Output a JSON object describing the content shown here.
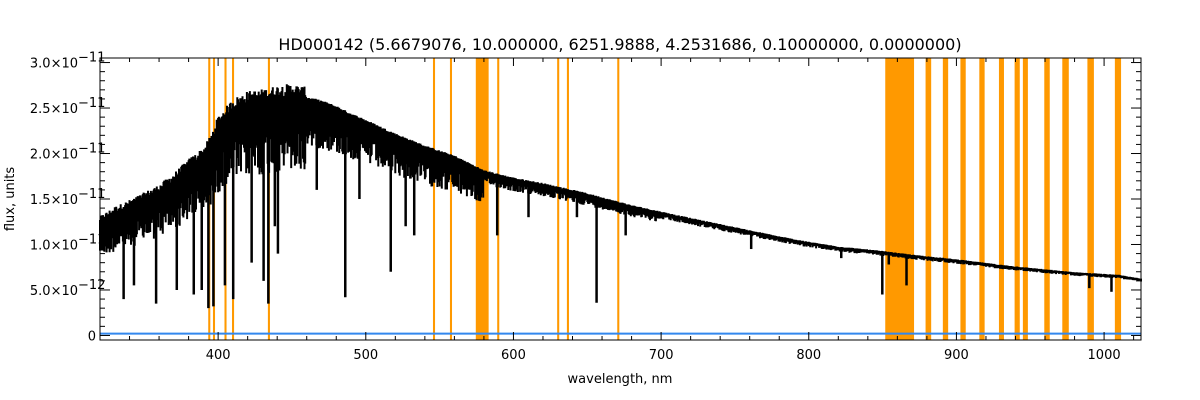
{
  "chart_data": {
    "type": "line",
    "title": "HD000142    (5.6679076, 10.000000, 6251.9888, 4.2531686, 0.10000000, 0.0000000)",
    "xlabel": "wavelength, nm",
    "ylabel": "flux, units",
    "xlim": [
      320,
      1025
    ],
    "ylim": [
      -5e-13,
      3.05e-11
    ],
    "grid": false,
    "x_ticks": [
      400,
      500,
      600,
      700,
      800,
      900,
      1000
    ],
    "x_tick_labels": [
      "400",
      "500",
      "600",
      "700",
      "800",
      "900",
      "1000"
    ],
    "y_ticks": [
      0,
      5e-12,
      1e-11,
      1.5e-11,
      2e-11,
      2.5e-11,
      3e-11
    ],
    "y_tick_labels": [
      {
        "mantissa": "0",
        "exp": ""
      },
      {
        "mantissa": "5.0×10",
        "exp": "−12"
      },
      {
        "mantissa": "1.0×10",
        "exp": "−11"
      },
      {
        "mantissa": "1.5×10",
        "exp": "−11"
      },
      {
        "mantissa": "2.0×10",
        "exp": "−11"
      },
      {
        "mantissa": "2.5×10",
        "exp": "−11"
      },
      {
        "mantissa": "3.0×10",
        "exp": "−11"
      }
    ],
    "colors": {
      "spectrum": "#000000",
      "masked_bands": "#FF9900",
      "error_line": "#3388EE",
      "axes": "#000000"
    },
    "masked_bands": [
      [
        393.3,
        394.7
      ],
      [
        396.5,
        397.9
      ],
      [
        404.3,
        405.7
      ],
      [
        409.4,
        410.8
      ],
      [
        433.7,
        435.1
      ],
      [
        545.5,
        546.9
      ],
      [
        557.0,
        558.4
      ],
      [
        574.5,
        583.2
      ],
      [
        589.0,
        590.4
      ],
      [
        629.6,
        631.0
      ],
      [
        636.2,
        637.6
      ],
      [
        670.3,
        671.7
      ],
      [
        851.8,
        871.3
      ],
      [
        879.1,
        882.9
      ],
      [
        890.8,
        894.4
      ],
      [
        902.7,
        906.3
      ],
      [
        915.5,
        919.1
      ],
      [
        928.8,
        932.2
      ],
      [
        939.4,
        942.9
      ],
      [
        945.0,
        948.4
      ],
      [
        959.5,
        963.2
      ],
      [
        971.7,
        976.1
      ],
      [
        988.7,
        993.1
      ],
      [
        1007.3,
        1011.5
      ]
    ],
    "series": [
      {
        "type": "continuum",
        "x": [
          320,
          330,
          340,
          350,
          360,
          370,
          380,
          390,
          395,
          400,
          410,
          420,
          430,
          440,
          450,
          460,
          470,
          480,
          490,
          500,
          520,
          540,
          560,
          570,
          580,
          600,
          620,
          650,
          680,
          700,
          720,
          750,
          780,
          800,
          820,
          850,
          870,
          900,
          930,
          960,
          980,
          1000,
          1010,
          1025
        ],
        "y": [
          1.25e-11,
          1.35e-11,
          1.42e-11,
          1.5e-11,
          1.58e-11,
          1.7e-11,
          1.85e-11,
          1.97e-11,
          2.1e-11,
          2.3e-11,
          2.48e-11,
          2.56e-11,
          2.58e-11,
          2.62e-11,
          2.64e-11,
          2.6e-11,
          2.56e-11,
          2.5e-11,
          2.42e-11,
          2.35e-11,
          2.2e-11,
          2.07e-11,
          1.96e-11,
          1.88e-11,
          1.8e-11,
          1.72e-11,
          1.66e-11,
          1.55e-11,
          1.42e-11,
          1.35e-11,
          1.28e-11,
          1.18e-11,
          1.08e-11,
          1.02e-11,
          9.7e-12,
          9.2e-12,
          8.8e-12,
          8.3e-12,
          7.7e-12,
          7.2e-12,
          6.9e-12,
          6.7e-12,
          6.6e-12,
          6.2e-12
        ]
      },
      {
        "type": "absorption_lines",
        "x": [
          336,
          343,
          358,
          372,
          383.5,
          388.9,
          393.4,
          396.8,
          404.6,
          410.2,
          422.7,
          430.8,
          434.0,
          438.4,
          440.5,
          466.8,
          486.1,
          495.7,
          516.9,
          527.0,
          532.8,
          589.0,
          610.2,
          643.0,
          656.3,
          676.0,
          761.0,
          822.0,
          849.8,
          854.2,
          866.2,
          990.0,
          1005.0
        ],
        "y": [
          4e-12,
          5.5e-12,
          3.5e-12,
          5e-12,
          4.5e-12,
          5e-12,
          3e-12,
          3.2e-12,
          5.5e-12,
          4e-12,
          8e-12,
          6e-12,
          3.5e-12,
          1.2e-11,
          9e-12,
          1.6e-11,
          4.2e-12,
          1.5e-11,
          7e-12,
          1.2e-11,
          1.1e-11,
          1.1e-11,
          1.3e-11,
          1.3e-11,
          3.6e-12,
          1.1e-11,
          9.5e-12,
          8.5e-12,
          4.5e-12,
          7.8e-12,
          5.5e-12,
          5.2e-12,
          4.8e-12
        ]
      },
      {
        "type": "error",
        "x": [
          320,
          1025
        ],
        "y": [
          2e-13,
          2e-13
        ]
      }
    ]
  }
}
